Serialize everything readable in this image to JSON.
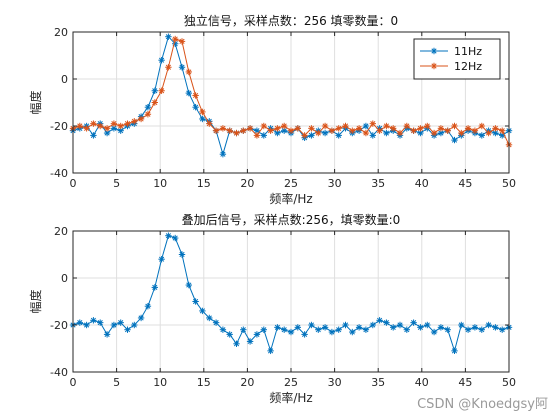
{
  "watermark": "CSDN @Knoedgsy阿",
  "chart_data": [
    {
      "type": "line",
      "title": "独立信号，采样点数：256 填零数量：0",
      "xlabel": "频率/Hz",
      "ylabel": "幅度",
      "xlim": [
        0,
        50
      ],
      "ylim": [
        -40,
        20
      ],
      "xticks": [
        "0",
        "5",
        "10",
        "15",
        "20",
        "25",
        "30",
        "35",
        "40",
        "45",
        "50"
      ],
      "yticks": [
        "-40",
        "-20",
        "0",
        "20"
      ],
      "grid": true,
      "legend_position": "top-right",
      "x": [
        0,
        0.78,
        1.56,
        2.34,
        3.12,
        3.91,
        4.69,
        5.47,
        6.25,
        7.03,
        7.81,
        8.59,
        9.38,
        10.16,
        10.94,
        11.72,
        12.5,
        13.28,
        14.06,
        14.84,
        15.63,
        16.41,
        17.19,
        17.97,
        18.75,
        19.53,
        20.31,
        21.09,
        21.88,
        22.66,
        23.44,
        24.22,
        25,
        25.78,
        26.56,
        27.34,
        28.13,
        28.91,
        29.69,
        30.47,
        31.25,
        32.03,
        32.81,
        33.59,
        34.38,
        35.16,
        35.94,
        36.72,
        37.5,
        38.28,
        39.06,
        39.84,
        40.63,
        41.41,
        42.19,
        42.97,
        43.75,
        44.53,
        45.31,
        46.09,
        46.88,
        47.66,
        48.44,
        49.22,
        50
      ],
      "series": [
        {
          "name": "11Hz",
          "color": "#0072BD",
          "marker": "*",
          "values": [
            -22,
            -21,
            -20,
            -24,
            -19,
            -23,
            -21,
            -22,
            -20,
            -19,
            -16,
            -12,
            -5,
            8,
            18,
            15,
            5,
            -6,
            -12,
            -17,
            -18,
            -22,
            -32,
            -22,
            -23,
            -22,
            -21,
            -22,
            -24,
            -21,
            -23,
            -22,
            -23,
            -21,
            -25,
            -24,
            -22,
            -23,
            -22,
            -24,
            -21,
            -23,
            -22,
            -20,
            -24,
            -21,
            -23,
            -22,
            -24,
            -21,
            -22,
            -23,
            -21,
            -24,
            -23,
            -22,
            -26,
            -24,
            -22,
            -23,
            -24,
            -22,
            -23,
            -24,
            -22
          ]
        },
        {
          "name": "12Hz",
          "color": "#D95319",
          "marker": "*",
          "values": [
            -21,
            -20,
            -21,
            -19,
            -20,
            -21,
            -19,
            -20,
            -19,
            -18,
            -17,
            -15,
            -10,
            -5,
            5,
            17,
            16,
            3,
            -7,
            -14,
            -19,
            -22,
            -21,
            -22,
            -23,
            -22,
            -21,
            -24,
            -20,
            -22,
            -21,
            -20,
            -22,
            -21,
            -24,
            -21,
            -23,
            -20,
            -22,
            -21,
            -20,
            -22,
            -21,
            -23,
            -19,
            -22,
            -20,
            -21,
            -23,
            -20,
            -22,
            -21,
            -20,
            -23,
            -21,
            -22,
            -20,
            -23,
            -21,
            -22,
            -20,
            -23,
            -21,
            -22,
            -28
          ]
        }
      ]
    },
    {
      "type": "line",
      "title": "叠加后信号，采样点数:256，填零数量:0",
      "xlabel": "频率/Hz",
      "ylabel": "幅度",
      "xlim": [
        0,
        50
      ],
      "ylim": [
        -40,
        20
      ],
      "xticks": [
        "0",
        "5",
        "10",
        "15",
        "20",
        "25",
        "30",
        "35",
        "40",
        "45",
        "50"
      ],
      "yticks": [
        "-40",
        "-20",
        "0",
        "20"
      ],
      "grid": true,
      "x": [
        0,
        0.78,
        1.56,
        2.34,
        3.12,
        3.91,
        4.69,
        5.47,
        6.25,
        7.03,
        7.81,
        8.59,
        9.38,
        10.16,
        10.94,
        11.72,
        12.5,
        13.28,
        14.06,
        14.84,
        15.63,
        16.41,
        17.19,
        17.97,
        18.75,
        19.53,
        20.31,
        21.09,
        21.88,
        22.66,
        23.44,
        24.22,
        25,
        25.78,
        26.56,
        27.34,
        28.13,
        28.91,
        29.69,
        30.47,
        31.25,
        32.03,
        32.81,
        33.59,
        34.38,
        35.16,
        35.94,
        36.72,
        37.5,
        38.28,
        39.06,
        39.84,
        40.63,
        41.41,
        42.19,
        42.97,
        43.75,
        44.53,
        45.31,
        46.09,
        46.88,
        47.66,
        48.44,
        49.22,
        50
      ],
      "series": [
        {
          "name": "",
          "color": "#0072BD",
          "marker": "*",
          "values": [
            -20,
            -19,
            -20,
            -18,
            -19,
            -24,
            -20,
            -19,
            -22,
            -20,
            -17,
            -12,
            -4,
            8,
            18,
            17,
            10,
            -3,
            -10,
            -14,
            -17,
            -19,
            -22,
            -24,
            -28,
            -22,
            -27,
            -24,
            -22,
            -31,
            -21,
            -22,
            -23,
            -21,
            -24,
            -20,
            -22,
            -21,
            -23,
            -22,
            -20,
            -23,
            -21,
            -22,
            -20,
            -18,
            -19,
            -21,
            -20,
            -22,
            -19,
            -21,
            -20,
            -23,
            -21,
            -22,
            -31,
            -20,
            -22,
            -21,
            -22,
            -20,
            -21,
            -22,
            -21
          ]
        }
      ]
    }
  ]
}
